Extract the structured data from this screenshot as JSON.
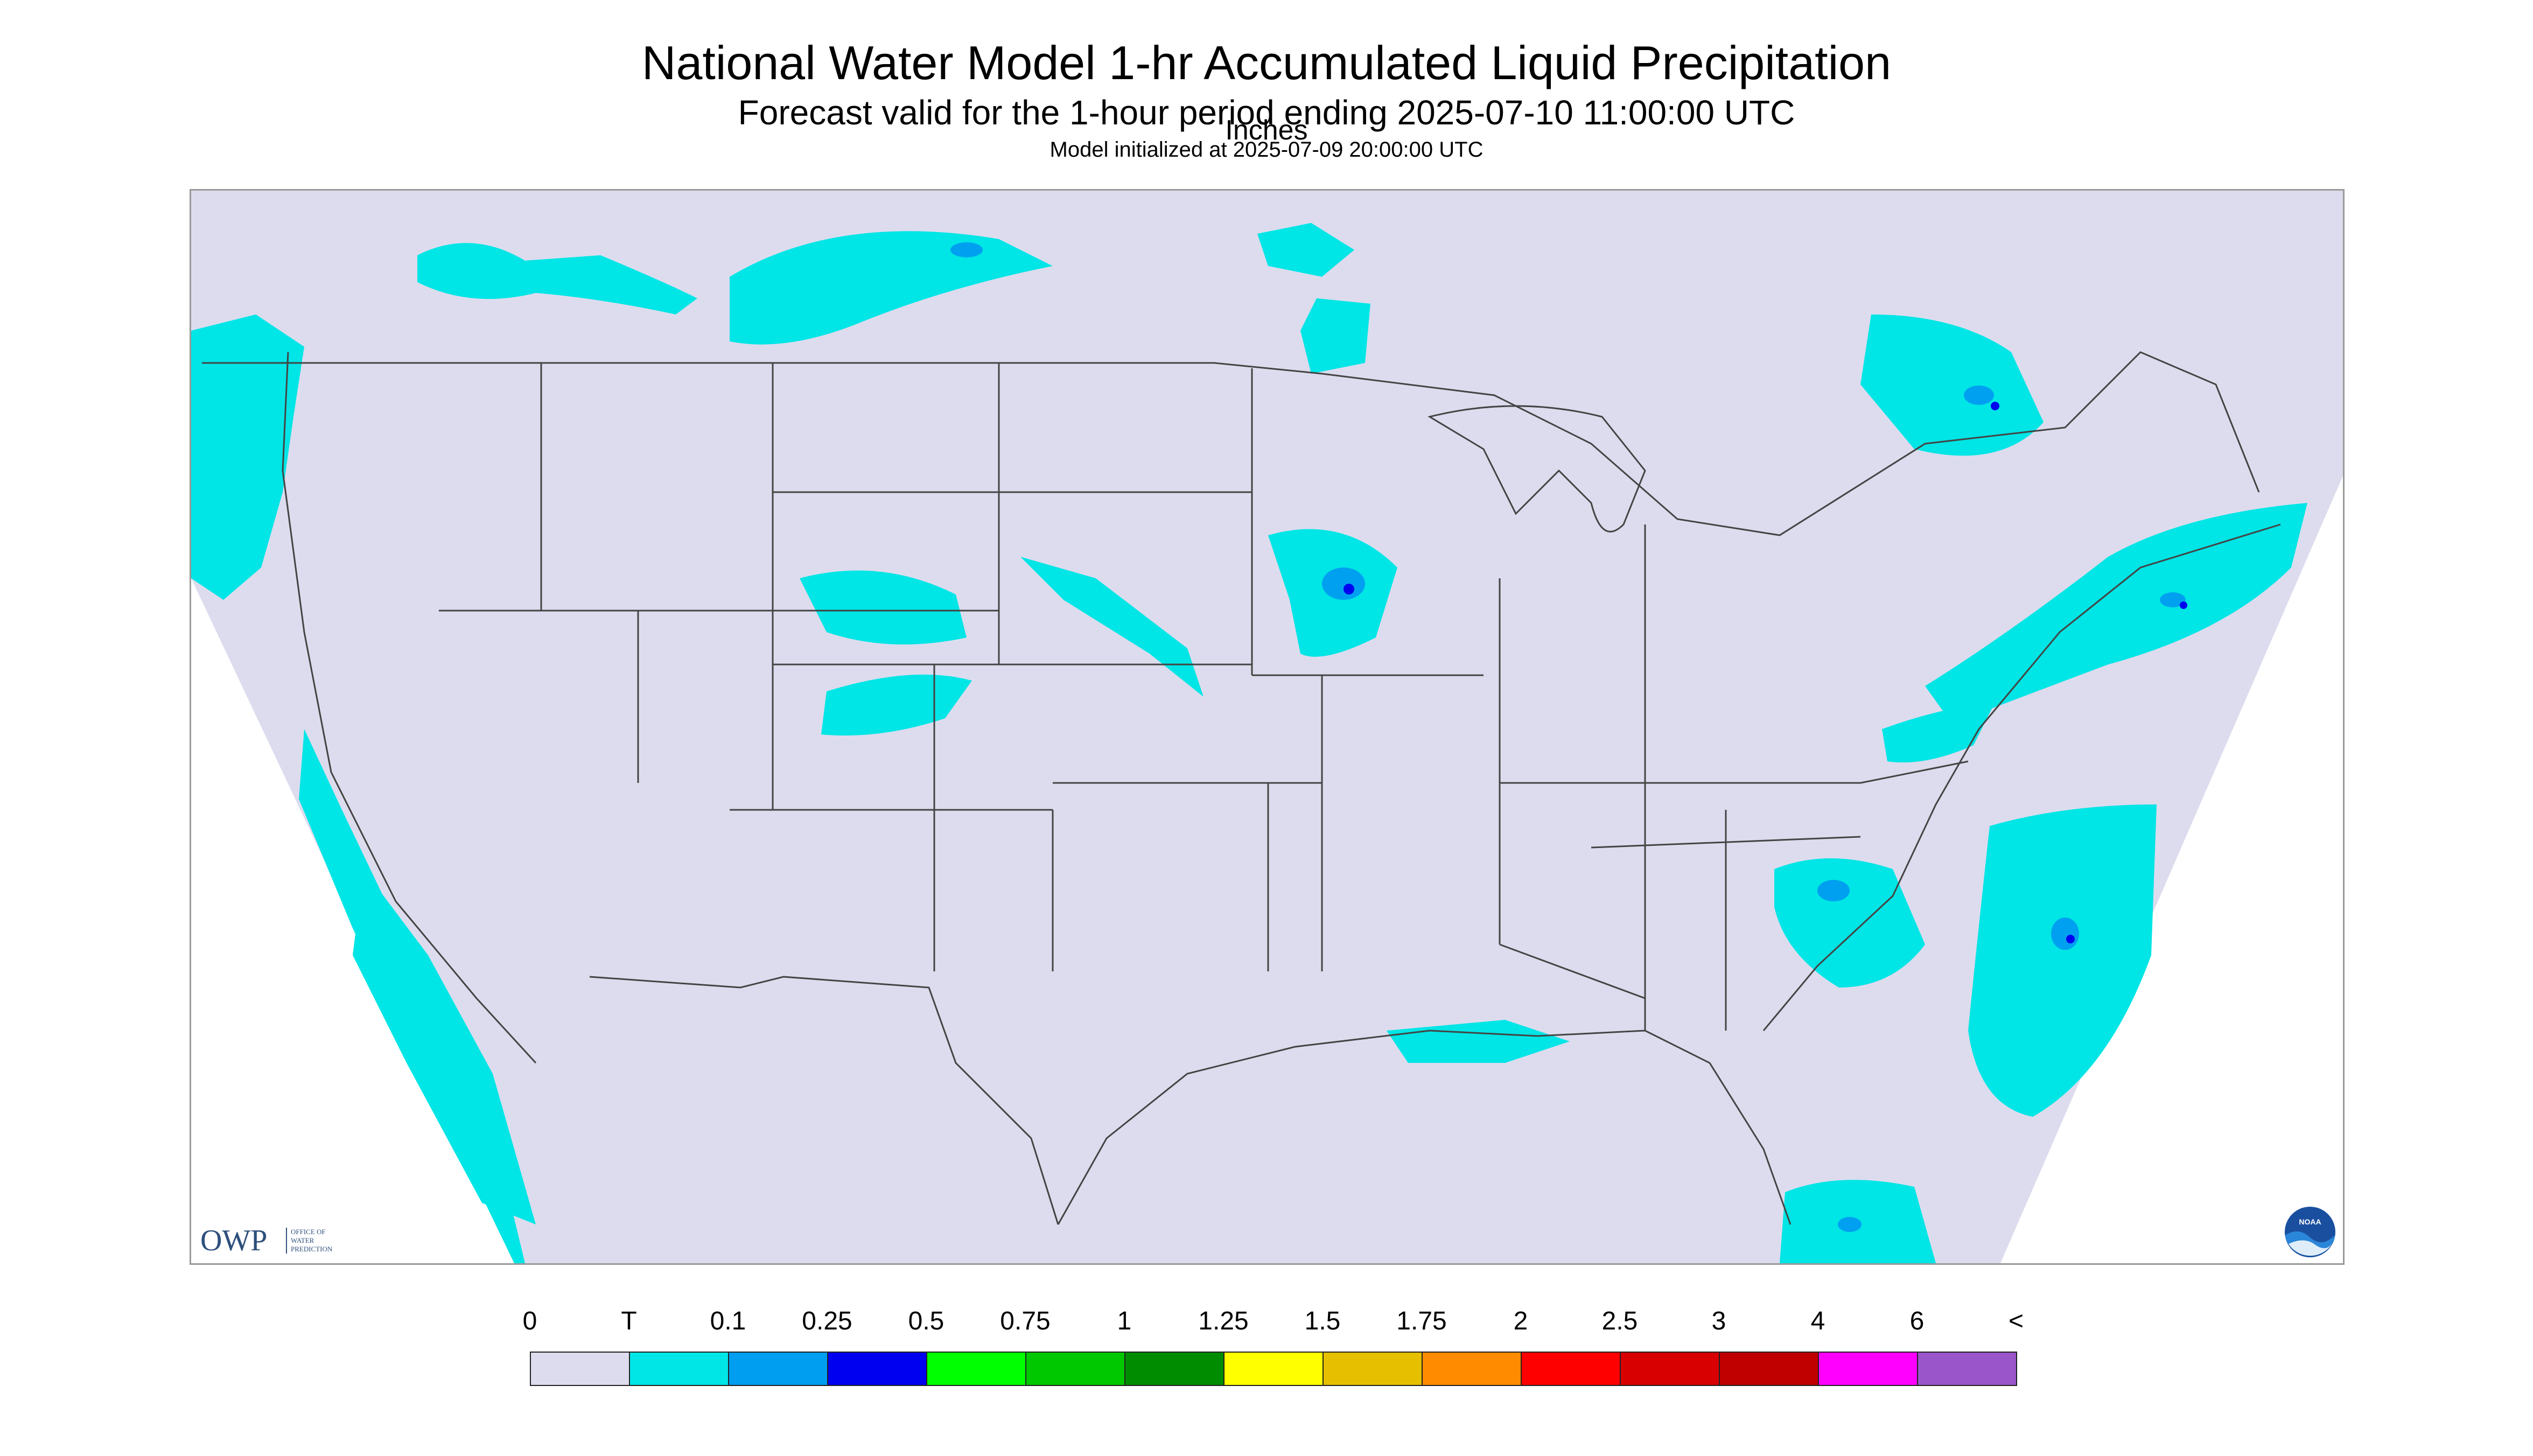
{
  "title": "National Water Model 1-hr Accumulated Liquid Precipitation",
  "subtitle": "Forecast valid for the 1-hour period ending 2025-07-10 11:00:00 UTC",
  "init_line": "Model initialized at 2025-07-09 20:00:00 UTC",
  "logos": {
    "owp": {
      "letters": "OWP",
      "line1": "OFFICE OF",
      "line2": "WATER",
      "line3": "PREDICTION"
    },
    "noaa": {
      "letters": "NOAA"
    }
  },
  "colors": {
    "no_precip_background": "#dcdcee",
    "outside_domain": "#ffffff",
    "boundaries": "#444444",
    "trace": "#00e5e5",
    "light_blue": "#00a0f0",
    "blue": "#0000f0"
  },
  "legend": {
    "unit": "Inches",
    "labels": [
      "0",
      "T",
      "0.1",
      "0.25",
      "0.5",
      "0.75",
      "1",
      "1.25",
      "1.5",
      "1.75",
      "2",
      "2.5",
      "3",
      "4",
      "6",
      "<"
    ],
    "colors": [
      "#dcdcee",
      "#00e6e6",
      "#009ef0",
      "#0000f0",
      "#00ff00",
      "#00c800",
      "#008c00",
      "#ffff00",
      "#e6c000",
      "#ff8c00",
      "#ff0000",
      "#d80000",
      "#c00000",
      "#ff00ff",
      "#9955c9"
    ]
  },
  "map": {
    "projection": "conus-lambert-conformal",
    "region": "Contiguous United States with parts of Canada, Mexico, Gulf of Mexico and western Atlantic",
    "precip_areas": [
      {
        "region": "Pacific Northwest coast and offshore",
        "category": "T"
      },
      {
        "region": "California coast and offshore Pacific",
        "category": "T"
      },
      {
        "region": "Southern Alberta / Saskatchewan",
        "category": "T"
      },
      {
        "region": "Minnesota / Iowa border",
        "category": "0.25"
      },
      {
        "region": "Ontario / Quebec",
        "category": "0.25"
      },
      {
        "region": "New England / Mid-Atlantic",
        "category": "0.25"
      },
      {
        "region": "Carolinas and offshore Atlantic",
        "category": "0.25"
      },
      {
        "region": "Southern Florida / Bahamas",
        "category": "0.25"
      }
    ]
  }
}
